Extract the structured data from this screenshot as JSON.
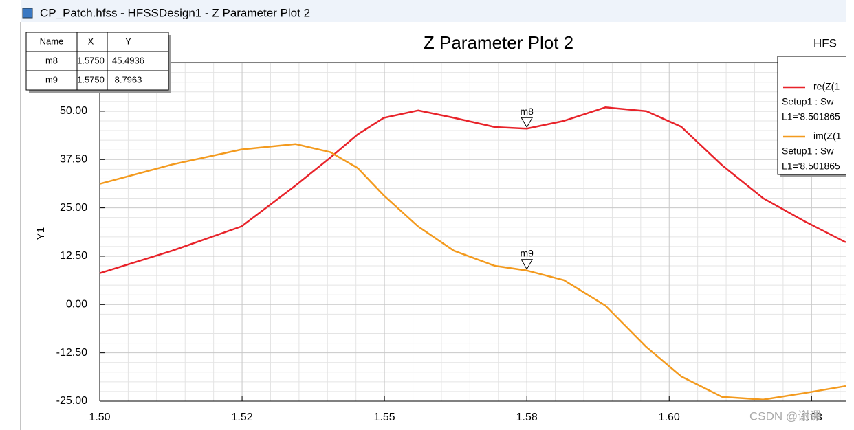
{
  "window_title": "CP_Patch.hfss - HFSSDesign1 - Z Parameter Plot 2",
  "marker_table": {
    "columns": [
      "Name",
      "X",
      "Y"
    ],
    "rows": [
      [
        "m8",
        "1.5750",
        "45.4936"
      ],
      [
        "m9",
        "1.5750",
        "8.7963"
      ]
    ]
  },
  "watermark": "CSDN @谢课",
  "chart_data": {
    "type": "line",
    "title": "Z Parameter Plot 2",
    "subtitle": "HFS",
    "y_label": "Y1",
    "x": [
      1.5,
      1.5127,
      1.5249,
      1.5344,
      1.5405,
      1.5453,
      1.5499,
      1.5559,
      1.5622,
      1.5694,
      1.575,
      1.5815,
      1.5888,
      1.596,
      1.6021,
      1.6093,
      1.6165,
      1.6238,
      1.631
    ],
    "series": [
      {
        "name": "re(Z(1",
        "legend_lines": [
          "Setup1 : Sw",
          "L1='8.501865"
        ],
        "color": "#e8232a",
        "values": [
          8.1,
          13.9,
          20.2,
          30.8,
          38.0,
          44.0,
          48.3,
          50.2,
          48.3,
          45.9,
          45.5,
          47.5,
          51.0,
          50.0,
          46.0,
          36.0,
          27.5,
          21.5,
          16.1
        ]
      },
      {
        "name": "im(Z(1",
        "legend_lines": [
          "Setup1 : Sw",
          "L1='8.501865"
        ],
        "color": "#f39a1e",
        "values": [
          31.2,
          36.2,
          40.1,
          41.5,
          39.4,
          35.3,
          28.2,
          20.2,
          13.9,
          10.0,
          8.8,
          6.3,
          -0.3,
          -11.0,
          -18.6,
          -23.9,
          -24.6,
          -22.9,
          -21.1
        ]
      }
    ],
    "markers": [
      {
        "name": "m8",
        "x": 1.575,
        "y": 45.4936
      },
      {
        "name": "m9",
        "x": 1.575,
        "y": 8.7963
      }
    ],
    "xlim": [
      1.5,
      1.631
    ],
    "ylim": [
      -25,
      62.6
    ],
    "xticks": [
      {
        "value": 1.5,
        "label": "1.50"
      },
      {
        "value": 1.525,
        "label": "1.52"
      },
      {
        "value": 1.55,
        "label": "1.55"
      },
      {
        "value": 1.575,
        "label": "1.58"
      },
      {
        "value": 1.6,
        "label": "1.60"
      },
      {
        "value": 1.625,
        "label": "1.63"
      }
    ],
    "yticks": [
      {
        "value": -25,
        "label": "-25.00"
      },
      {
        "value": -12.5,
        "label": "-12.50"
      },
      {
        "value": 0,
        "label": "0.00"
      },
      {
        "value": 12.5,
        "label": "12.50"
      },
      {
        "value": 25,
        "label": "25.00"
      },
      {
        "value": 37.5,
        "label": "37.50"
      },
      {
        "value": 50,
        "label": "50.00"
      }
    ],
    "grid": true
  }
}
